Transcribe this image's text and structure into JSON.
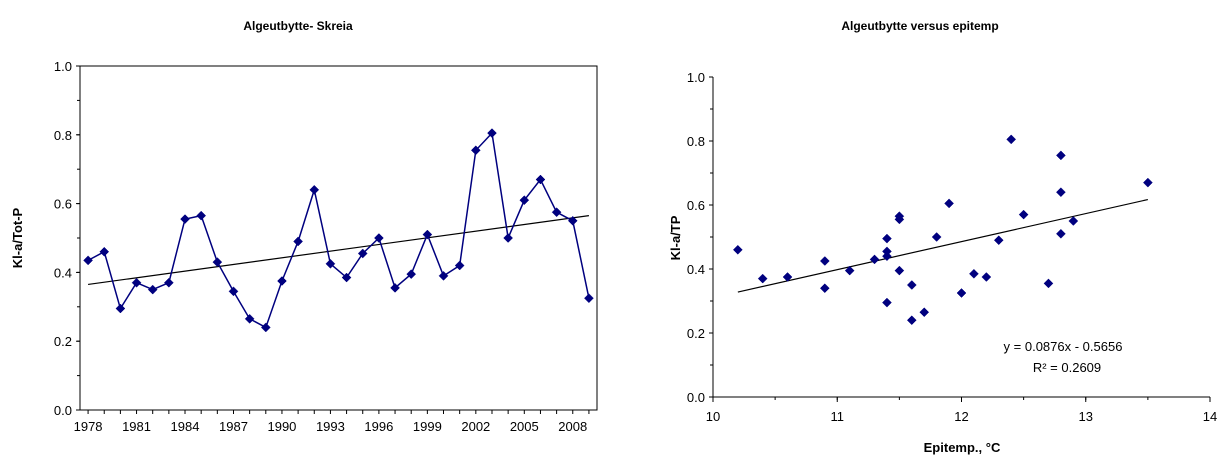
{
  "chart_data": [
    {
      "type": "line",
      "title": "Algeutbytte- Skreia",
      "xlabel": "",
      "ylabel": "Kl-a/Tot-P",
      "xlim": [
        1977.5,
        2009.5
      ],
      "ylim": [
        0,
        1.0
      ],
      "x_ticks": [
        "1978",
        "1981",
        "1984",
        "1987",
        "1990",
        "1993",
        "1996",
        "1999",
        "2002",
        "2005",
        "2008"
      ],
      "y_ticks": [
        "0.0",
        "0.2",
        "0.4",
        "0.6",
        "0.8",
        "1.0"
      ],
      "grid": false,
      "legend": "none",
      "series": [
        {
          "x": [
            1978,
            1979,
            1980,
            1981,
            1982,
            1983,
            1984,
            1985,
            1986,
            1987,
            1988,
            1989,
            1990,
            1991,
            1992,
            1993,
            1994,
            1995,
            1996,
            1997,
            1998,
            1999,
            2000,
            2001,
            2002,
            2003,
            2004,
            2005,
            2006,
            2007,
            2008,
            2009
          ],
          "y": [
            0.435,
            0.46,
            0.295,
            0.37,
            0.35,
            0.37,
            0.555,
            0.565,
            0.43,
            0.345,
            0.265,
            0.24,
            0.375,
            0.49,
            0.64,
            0.425,
            0.385,
            0.455,
            0.5,
            0.355,
            0.395,
            0.51,
            0.39,
            0.42,
            0.755,
            0.805,
            0.5,
            0.61,
            0.67,
            0.575,
            0.55,
            0.325
          ]
        }
      ],
      "trendline": {
        "x": [
          1978,
          2009
        ],
        "y": [
          0.365,
          0.565
        ]
      },
      "colors": {
        "series": "#00007f",
        "trend": "#000000"
      }
    },
    {
      "type": "scatter",
      "title": "Algeutbytte versus epitemp",
      "xlabel": "Epitemp., °C",
      "ylabel": "Kl-a/TP",
      "xlim": [
        10,
        14
      ],
      "ylim": [
        0,
        1.0
      ],
      "x_ticks": [
        "10",
        "11",
        "12",
        "13",
        "14"
      ],
      "y_ticks": [
        "0.0",
        "0.2",
        "0.4",
        "0.6",
        "0.8",
        "1.0"
      ],
      "grid": false,
      "legend": "none",
      "series": [
        {
          "points": [
            [
              10.2,
              0.46
            ],
            [
              10.4,
              0.37
            ],
            [
              10.6,
              0.375
            ],
            [
              10.9,
              0.425
            ],
            [
              10.9,
              0.34
            ],
            [
              11.1,
              0.395
            ],
            [
              11.3,
              0.43
            ],
            [
              11.4,
              0.495
            ],
            [
              11.4,
              0.455
            ],
            [
              11.4,
              0.44
            ],
            [
              11.4,
              0.295
            ],
            [
              11.5,
              0.565
            ],
            [
              11.5,
              0.555
            ],
            [
              11.5,
              0.395
            ],
            [
              11.6,
              0.35
            ],
            [
              11.6,
              0.24
            ],
            [
              11.7,
              0.265
            ],
            [
              11.8,
              0.5
            ],
            [
              11.9,
              0.605
            ],
            [
              12.0,
              0.325
            ],
            [
              12.1,
              0.385
            ],
            [
              12.2,
              0.375
            ],
            [
              12.3,
              0.49
            ],
            [
              12.4,
              0.805
            ],
            [
              12.5,
              0.57
            ],
            [
              12.7,
              0.355
            ],
            [
              12.8,
              0.755
            ],
            [
              12.8,
              0.64
            ],
            [
              12.8,
              0.51
            ],
            [
              12.9,
              0.55
            ],
            [
              13.5,
              0.67
            ]
          ]
        }
      ],
      "trendline": {
        "x": [
          10.2,
          13.5
        ],
        "y": [
          0.328,
          0.617
        ]
      },
      "annotations": [
        "y = 0.0876x - 0.5656",
        "R² = 0.2609"
      ],
      "colors": {
        "series": "#00007f",
        "trend": "#000000"
      }
    }
  ]
}
